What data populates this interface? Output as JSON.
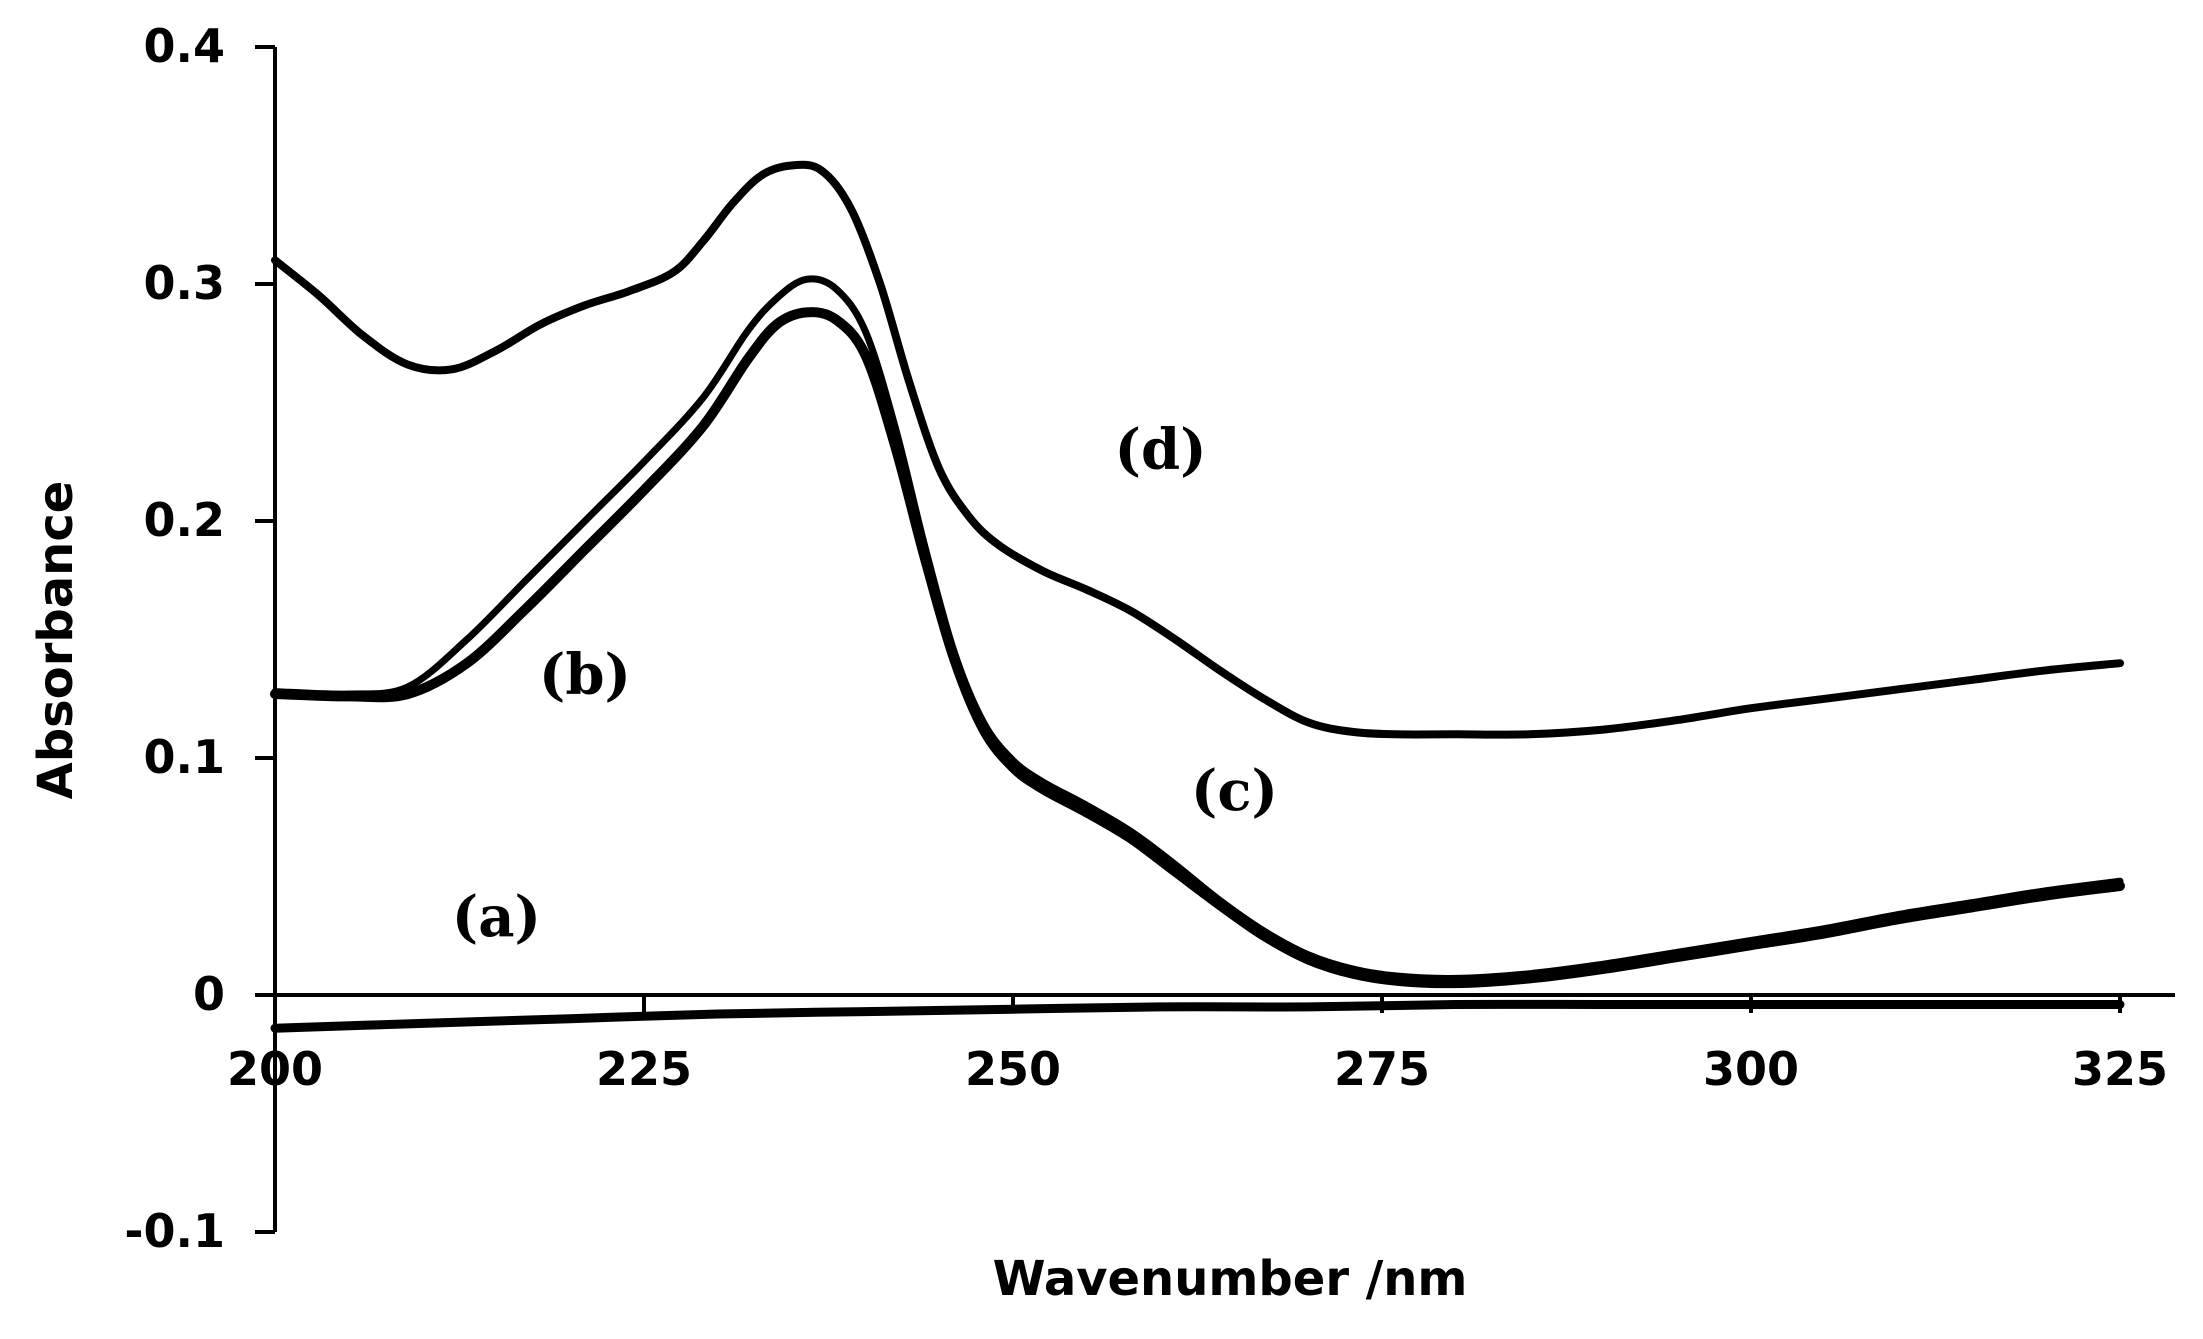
{
  "chart_data": {
    "type": "line",
    "xlabel": "Wavenumber /nm",
    "ylabel": "Absorbance",
    "xlim": [
      200,
      325
    ],
    "ylim": [
      -0.1,
      0.4
    ],
    "x_ticks": [
      "200",
      "225",
      "250",
      "275",
      "300",
      "325"
    ],
    "y_ticks": [
      "-0.1",
      "0",
      "0.1",
      "0.2",
      "0.3",
      "0.4"
    ],
    "grid": false,
    "legend": "none",
    "line_color": "#000000",
    "series": [
      {
        "name": "(a)",
        "label_at": [
          215,
          0.025
        ],
        "x": [
          200,
          210,
          220,
          230,
          240,
          250,
          260,
          270,
          280,
          290,
          300,
          310,
          320,
          325
        ],
        "y": [
          -0.014,
          -0.012,
          -0.01,
          -0.008,
          -0.007,
          -0.006,
          -0.005,
          -0.005,
          -0.004,
          -0.004,
          -0.004,
          -0.004,
          -0.004,
          -0.004
        ]
      },
      {
        "name": "(b)",
        "label_at": [
          221,
          0.127
        ],
        "x": [
          200,
          205,
          209,
          213,
          217,
          221,
          225,
          229,
          232,
          234,
          236,
          238,
          240,
          242,
          244,
          246,
          248,
          250,
          252,
          255,
          258,
          261,
          264,
          267,
          270,
          273,
          276,
          280,
          285,
          290,
          295,
          300,
          305,
          310,
          315,
          320,
          325
        ],
        "y": [
          0.128,
          0.127,
          0.13,
          0.15,
          0.175,
          0.2,
          0.225,
          0.252,
          0.28,
          0.294,
          0.302,
          0.298,
          0.28,
          0.24,
          0.19,
          0.145,
          0.115,
          0.099,
          0.09,
          0.08,
          0.069,
          0.055,
          0.04,
          0.027,
          0.017,
          0.011,
          0.008,
          0.007,
          0.009,
          0.013,
          0.018,
          0.023,
          0.028,
          0.034,
          0.039,
          0.044,
          0.048
        ]
      },
      {
        "name": "(c)",
        "label_at": [
          265,
          0.078
        ],
        "x": [
          200,
          205,
          209,
          213,
          217,
          221,
          225,
          229,
          232,
          234,
          236,
          238,
          240,
          242,
          244,
          246,
          248,
          250,
          252,
          255,
          258,
          261,
          264,
          267,
          270,
          273,
          276,
          280,
          285,
          290,
          295,
          300,
          305,
          310,
          315,
          320,
          325
        ],
        "y": [
          0.127,
          0.126,
          0.127,
          0.14,
          0.163,
          0.188,
          0.213,
          0.24,
          0.268,
          0.283,
          0.288,
          0.285,
          0.27,
          0.232,
          0.185,
          0.142,
          0.112,
          0.096,
          0.087,
          0.077,
          0.066,
          0.052,
          0.038,
          0.025,
          0.015,
          0.009,
          0.006,
          0.005,
          0.007,
          0.011,
          0.016,
          0.021,
          0.026,
          0.032,
          0.037,
          0.042,
          0.046
        ]
      },
      {
        "name": "(d)",
        "label_at": [
          260,
          0.222
        ],
        "x": [
          200,
          203,
          206,
          209,
          212,
          215,
          218,
          221,
          224,
          227,
          229,
          231,
          233,
          235,
          237,
          239,
          241,
          243,
          245,
          247,
          249,
          252,
          255,
          258,
          261,
          264,
          267,
          270,
          273,
          276,
          280,
          285,
          290,
          295,
          300,
          305,
          310,
          315,
          320,
          325
        ],
        "y": [
          0.31,
          0.295,
          0.278,
          0.266,
          0.264,
          0.272,
          0.283,
          0.291,
          0.297,
          0.305,
          0.318,
          0.334,
          0.346,
          0.35,
          0.348,
          0.332,
          0.3,
          0.258,
          0.222,
          0.202,
          0.19,
          0.179,
          0.171,
          0.162,
          0.15,
          0.137,
          0.125,
          0.115,
          0.111,
          0.11,
          0.11,
          0.11,
          0.112,
          0.116,
          0.121,
          0.125,
          0.129,
          0.133,
          0.137,
          0.14
        ]
      }
    ]
  }
}
